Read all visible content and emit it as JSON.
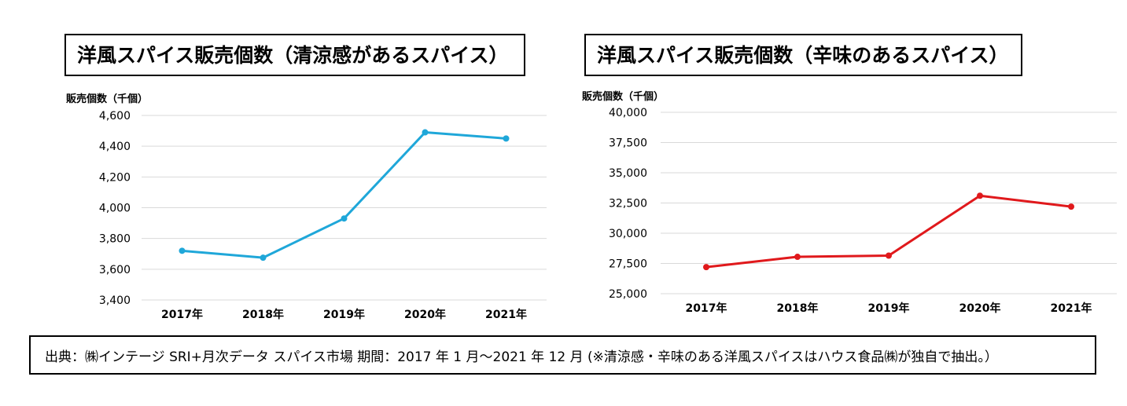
{
  "chart_data": [
    {
      "type": "line",
      "title": "洋風スパイス販売個数（清涼感があるスパイス）",
      "ylabel": "販売個数（千個）",
      "xlabel": "",
      "categories": [
        "2017年",
        "2018年",
        "2019年",
        "2020年",
        "2021年"
      ],
      "series": [
        {
          "name": "清涼感があるスパイス",
          "values": [
            3720,
            3675,
            3930,
            4490,
            4450
          ]
        }
      ],
      "ylim": [
        3400,
        4600
      ],
      "yticks": [
        3400,
        3600,
        3800,
        4000,
        4200,
        4400,
        4600
      ],
      "ytick_labels": [
        "3,400",
        "3,600",
        "3,800",
        "4,000",
        "4,200",
        "4,400",
        "4,600"
      ],
      "color": "#1fa7d9",
      "grid": true
    },
    {
      "type": "line",
      "title": "洋風スパイス販売個数（辛味のあるスパイス）",
      "ylabel": "販売個数（千個）",
      "xlabel": "",
      "categories": [
        "2017年",
        "2018年",
        "2019年",
        "2020年",
        "2021年"
      ],
      "series": [
        {
          "name": "辛味のあるスパイス",
          "values": [
            27200,
            28050,
            28150,
            33100,
            32200
          ]
        }
      ],
      "ylim": [
        25000,
        40000
      ],
      "yticks": [
        25000,
        27500,
        30000,
        32500,
        35000,
        37500,
        40000
      ],
      "ytick_labels": [
        "25,000",
        "27,500",
        "30,000",
        "32,500",
        "35,000",
        "37,500",
        "40,000"
      ],
      "color": "#e0191c",
      "grid": true
    }
  ],
  "source_note": "出典：㈱インテージ  SRI+月次データ スパイス市場  期間：2017 年 1 月～2021 年 12 月  (※清涼感・辛味のある洋風スパイスはハウス食品㈱が独自で抽出。）"
}
